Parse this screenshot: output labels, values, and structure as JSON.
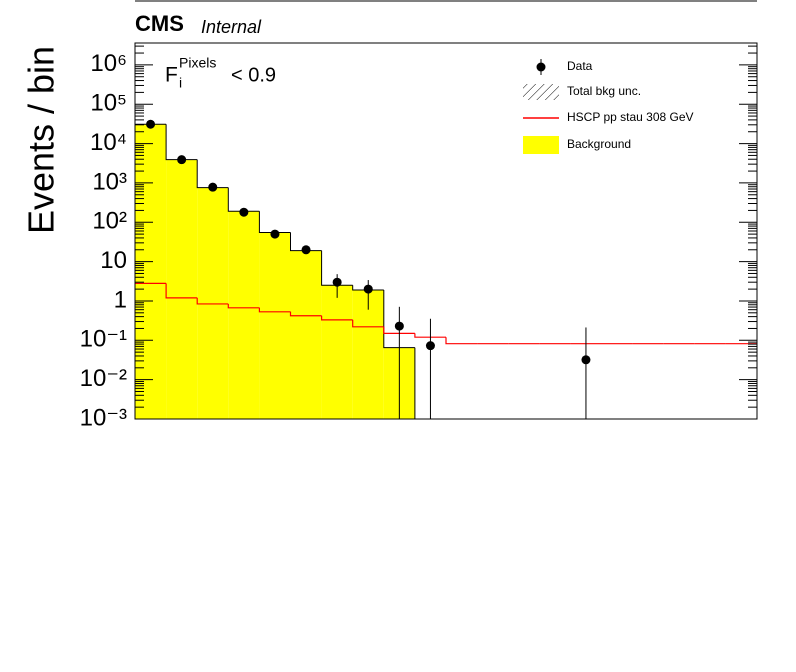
{
  "chart_data": {
    "type": "hist",
    "title": "CMS",
    "subtitle": "Internal",
    "ylabel": "Events / bin",
    "annotation": {
      "main": "F",
      "sub": "i",
      "sup": "Pixels",
      "cut": "< 0.9"
    },
    "yscale": "log",
    "ylim": [
      0.001,
      3600000
    ],
    "yticks": [
      {
        "value": 0.001,
        "label": "10⁻³"
      },
      {
        "value": 0.01,
        "label": "10⁻²"
      },
      {
        "value": 0.1,
        "label": "10⁻¹"
      },
      1,
      10,
      {
        "value": 100,
        "label": "10²"
      },
      {
        "value": 1000,
        "label": "10³"
      },
      {
        "value": 10000,
        "label": "10⁴"
      },
      {
        "value": 100000,
        "label": "10⁵"
      },
      {
        "value": 1000000,
        "label": "10⁶"
      }
    ],
    "categories": [
      null,
      null,
      null,
      null,
      null,
      null,
      null,
      null,
      null,
      null,
      null,
      null,
      null,
      null,
      null,
      null,
      null,
      null,
      null,
      null
    ],
    "legend": "top-right",
    "unc_name": "Total bkg unc.",
    "series": [
      {
        "name": "Data",
        "kind": "points",
        "color": "#000000",
        "values": [
          31000,
          3900,
          780,
          180,
          50,
          20,
          3.0,
          2.0,
          0.23,
          0.073,
          null,
          null,
          null,
          null,
          0.032,
          null,
          null,
          null,
          null,
          null
        ],
        "err_low": [
          180,
          63,
          28,
          13,
          7,
          4.5,
          1.8,
          1.4,
          0.23,
          0.073,
          null,
          null,
          null,
          null,
          0.032,
          null,
          null,
          null,
          null,
          null
        ],
        "err_high": [
          180,
          63,
          28,
          13,
          7,
          4.5,
          1.8,
          1.4,
          0.48,
          0.28,
          null,
          null,
          null,
          null,
          0.18,
          null,
          null,
          null,
          null,
          null
        ]
      },
      {
        "name": "HSCP pp stau 308 GeV",
        "kind": "step",
        "color": "#ff0000",
        "values": [
          2.8,
          1.2,
          0.84,
          0.67,
          0.53,
          0.42,
          0.33,
          0.22,
          0.15,
          0.12,
          0.082,
          0.082,
          0.082,
          0.082,
          0.082,
          0.082,
          0.082,
          0.082,
          0.082,
          0.082
        ]
      },
      {
        "name": "Background",
        "kind": "filled",
        "color": "#ffff00",
        "values": [
          31000,
          3900,
          760,
          190,
          55,
          19,
          2.5,
          1.9,
          0.065,
          null,
          null,
          null,
          null,
          null,
          null,
          null,
          null,
          null,
          null,
          null
        ]
      }
    ]
  }
}
